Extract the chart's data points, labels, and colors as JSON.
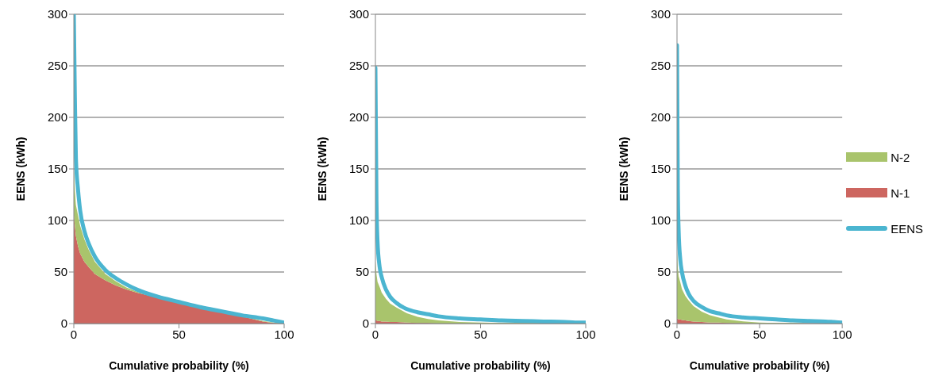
{
  "chart_data": [
    {
      "type": "area",
      "stacked": true,
      "xlabel": "Cumulative probability (%)",
      "ylabel": "EENS (kWh)",
      "xlim": [
        0,
        100
      ],
      "xticks": [
        0,
        50,
        100
      ],
      "ylim": [
        0,
        300
      ],
      "yticks": [
        0,
        50,
        100,
        150,
        200,
        250,
        300
      ],
      "grid": "y",
      "legend": false,
      "x": [
        0,
        0.5,
        1,
        2,
        3,
        5,
        7,
        10,
        15,
        20,
        25,
        30,
        40,
        50,
        60,
        70,
        80,
        90,
        95,
        100
      ],
      "series": [
        {
          "color": "#cd6660",
          "values": [
            105,
            95,
            85,
            75,
            68,
            60,
            55,
            48,
            42,
            37,
            33,
            30,
            25,
            20,
            15,
            11,
            7,
            2,
            0.5,
            0
          ]
        },
        {
          "color": "#a9c46c",
          "values": [
            45,
            35,
            30,
            30,
            27,
            22,
            17,
            12,
            6,
            4,
            2,
            1,
            0.5,
            0.5,
            0.5,
            0.5,
            0.5,
            0.5,
            0.5,
            0.5
          ]
        },
        {
          "type": "line",
          "color": "#4bb5d0",
          "values": [
            300,
            220,
            160,
            130,
            110,
            90,
            78,
            65,
            52,
            44,
            38,
            33,
            26,
            21,
            16,
            12,
            8,
            5,
            3,
            1
          ]
        }
      ]
    },
    {
      "type": "area",
      "stacked": true,
      "xlabel": "Cumulative probability (%)",
      "ylabel": "EENS (kWh)",
      "xlim": [
        0,
        100
      ],
      "xticks": [
        0,
        50,
        100
      ],
      "ylim": [
        0,
        300
      ],
      "yticks": [
        0,
        50,
        100,
        150,
        200,
        250,
        300
      ],
      "grid": "y",
      "legend": false,
      "x": [
        0,
        0.5,
        1,
        2,
        3,
        5,
        7,
        10,
        15,
        20,
        25,
        30,
        40,
        50,
        60,
        70,
        80,
        90,
        95,
        100
      ],
      "series": [
        {
          "color": "#cd6660",
          "values": [
            3,
            3,
            2.5,
            2.5,
            2,
            2,
            1.5,
            1.5,
            1,
            0.5,
            0.5,
            0,
            0,
            0,
            0,
            0,
            0,
            0,
            0,
            0
          ]
        },
        {
          "color": "#a9c46c",
          "values": [
            58,
            45,
            38,
            33,
            28,
            22,
            18,
            14,
            9,
            6,
            4,
            3,
            1.5,
            1,
            0.5,
            0.5,
            0.5,
            0,
            0,
            0
          ]
        },
        {
          "type": "line",
          "color": "#4bb5d0",
          "values": [
            248,
            120,
            80,
            55,
            45,
            33,
            26,
            20,
            14,
            11,
            9,
            7,
            5,
            4,
            3,
            2.5,
            2,
            1.5,
            1,
            1
          ]
        }
      ]
    },
    {
      "type": "area",
      "stacked": true,
      "xlabel": "Cumulative probability (%)",
      "ylabel": "EENS (kWh)",
      "xlim": [
        0,
        100
      ],
      "xticks": [
        0,
        50,
        100
      ],
      "ylim": [
        0,
        300
      ],
      "yticks": [
        0,
        50,
        100,
        150,
        200,
        250,
        300
      ],
      "grid": "y",
      "legend": "right",
      "x": [
        0,
        0.5,
        1,
        2,
        3,
        5,
        7,
        10,
        15,
        20,
        25,
        30,
        40,
        50,
        60,
        70,
        80,
        90,
        95,
        100
      ],
      "series": [
        {
          "name": "N-1",
          "color": "#cd6660",
          "values": [
            5,
            4.5,
            4,
            4,
            3.5,
            3,
            2.5,
            2,
            1.5,
            1,
            1,
            0.5,
            0.2,
            0,
            0,
            0,
            0,
            0,
            0,
            0
          ]
        },
        {
          "name": "N-2",
          "color": "#a9c46c",
          "values": [
            65,
            50,
            42,
            36,
            30,
            24,
            20,
            15,
            10,
            7,
            5,
            3.5,
            2,
            1,
            0.5,
            0.5,
            0,
            0,
            0,
            0
          ]
        },
        {
          "name": "EENS",
          "type": "line",
          "color": "#4bb5d0",
          "values": [
            270,
            130,
            90,
            62,
            50,
            37,
            29,
            22,
            16,
            12,
            10,
            8,
            6,
            5,
            4,
            3,
            2.5,
            2,
            1.5,
            1
          ]
        }
      ]
    }
  ]
}
